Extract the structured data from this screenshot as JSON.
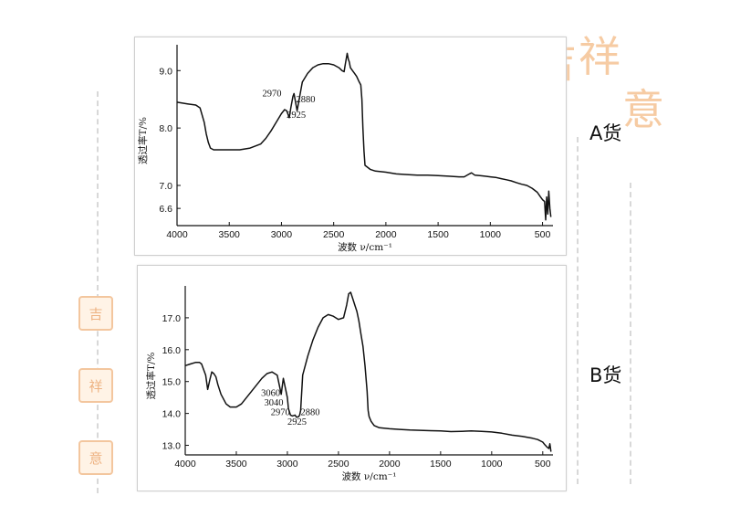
{
  "labels": {
    "panel_a": "A货",
    "panel_b": "B货"
  },
  "logo_text": [
    "吉",
    "祥",
    "意"
  ],
  "colors": {
    "logo": "#f2b98a",
    "line": "#111111",
    "panel_border": "#cfcfcf"
  },
  "chart_data": [
    {
      "type": "line",
      "title": "A货",
      "xlabel": "波数 ν/cm⁻¹",
      "ylabel": "透过率T/%",
      "xlim": [
        4000,
        400
      ],
      "ylim": [
        6.3,
        9.45
      ],
      "xticks": [
        4000,
        3500,
        3000,
        2500,
        2000,
        1500,
        1000,
        500
      ],
      "yticks": [
        6.6,
        7.0,
        8.0,
        9.0
      ],
      "annotations": [
        {
          "text": "2970",
          "x": 3000,
          "y": 8.55,
          "anchor": "end"
        },
        {
          "text": "2880",
          "x": 2860,
          "y": 8.45,
          "anchor": "start"
        },
        {
          "text": "2925",
          "x": 2950,
          "y": 8.18,
          "anchor": "start"
        }
      ],
      "series": [
        {
          "name": "A货",
          "x": [
            4000,
            3900,
            3820,
            3780,
            3740,
            3720,
            3700,
            3680,
            3650,
            3600,
            3500,
            3400,
            3300,
            3200,
            3150,
            3100,
            3050,
            3000,
            2970,
            2950,
            2925,
            2910,
            2890,
            2880,
            2865,
            2850,
            2800,
            2750,
            2700,
            2650,
            2600,
            2550,
            2500,
            2450,
            2420,
            2400,
            2390,
            2370,
            2360,
            2350,
            2340,
            2320,
            2300,
            2280,
            2260,
            2240,
            2230,
            2220,
            2210,
            2200,
            2150,
            2100,
            2000,
            1900,
            1800,
            1700,
            1600,
            1500,
            1400,
            1300,
            1250,
            1200,
            1180,
            1150,
            1100,
            1050,
            1000,
            950,
            900,
            850,
            800,
            750,
            700,
            650,
            600,
            550,
            520,
            500,
            480,
            470,
            460,
            450,
            440,
            430,
            420
          ],
          "y": [
            8.45,
            8.42,
            8.4,
            8.35,
            8.1,
            7.9,
            7.75,
            7.65,
            7.62,
            7.62,
            7.62,
            7.62,
            7.65,
            7.72,
            7.82,
            7.95,
            8.1,
            8.25,
            8.32,
            8.3,
            8.18,
            8.35,
            8.55,
            8.6,
            8.45,
            8.3,
            8.8,
            8.95,
            9.05,
            9.1,
            9.12,
            9.12,
            9.1,
            9.05,
            9.0,
            8.98,
            9.1,
            9.3,
            9.2,
            9.15,
            9.05,
            9.0,
            8.95,
            8.9,
            8.82,
            8.75,
            8.5,
            8.0,
            7.6,
            7.35,
            7.28,
            7.25,
            7.23,
            7.2,
            7.19,
            7.18,
            7.18,
            7.17,
            7.16,
            7.15,
            7.15,
            7.2,
            7.22,
            7.18,
            7.17,
            7.16,
            7.15,
            7.14,
            7.12,
            7.1,
            7.08,
            7.05,
            7.02,
            7.0,
            6.95,
            6.88,
            6.8,
            6.75,
            6.72,
            6.4,
            6.8,
            6.5,
            6.9,
            6.6,
            6.45
          ]
        }
      ]
    },
    {
      "type": "line",
      "title": "B货",
      "xlabel": "波数 ν/cm⁻¹",
      "ylabel": "透过率T/%",
      "xlim": [
        4000,
        400
      ],
      "ylim": [
        12.7,
        18.0
      ],
      "xticks": [
        4000,
        3500,
        3000,
        2500,
        2000,
        1500,
        1000,
        500
      ],
      "yticks": [
        13.0,
        14.0,
        15.0,
        16.0,
        17.0
      ],
      "annotations": [
        {
          "text": "3060",
          "x": 3070,
          "y": 14.55,
          "anchor": "end"
        },
        {
          "text": "3040",
          "x": 3040,
          "y": 14.25,
          "anchor": "end"
        },
        {
          "text": "2970",
          "x": 2975,
          "y": 13.95,
          "anchor": "end"
        },
        {
          "text": "2880",
          "x": 2870,
          "y": 13.95,
          "anchor": "start"
        },
        {
          "text": "2925",
          "x": 3000,
          "y": 13.65,
          "anchor": "start"
        }
      ],
      "series": [
        {
          "name": "B货",
          "x": [
            4000,
            3950,
            3900,
            3860,
            3840,
            3800,
            3780,
            3760,
            3740,
            3720,
            3700,
            3680,
            3650,
            3600,
            3560,
            3520,
            3500,
            3450,
            3400,
            3350,
            3300,
            3250,
            3200,
            3150,
            3100,
            3080,
            3060,
            3050,
            3040,
            3020,
            3000,
            2990,
            2970,
            2950,
            2925,
            2910,
            2890,
            2880,
            2870,
            2850,
            2800,
            2750,
            2700,
            2650,
            2600,
            2550,
            2500,
            2450,
            2420,
            2400,
            2380,
            2360,
            2340,
            2320,
            2300,
            2280,
            2260,
            2240,
            2220,
            2210,
            2200,
            2180,
            2150,
            2100,
            2000,
            1900,
            1800,
            1700,
            1600,
            1500,
            1400,
            1300,
            1200,
            1100,
            1000,
            900,
            800,
            700,
            600,
            550,
            500,
            480,
            460,
            440,
            430,
            420
          ],
          "y": [
            15.5,
            15.55,
            15.6,
            15.6,
            15.55,
            15.2,
            14.75,
            15.05,
            15.3,
            15.25,
            15.15,
            14.9,
            14.6,
            14.3,
            14.2,
            14.2,
            14.2,
            14.3,
            14.5,
            14.7,
            14.9,
            15.1,
            15.25,
            15.3,
            15.2,
            14.9,
            14.6,
            14.85,
            15.1,
            14.8,
            14.5,
            14.15,
            13.95,
            13.92,
            13.95,
            13.88,
            13.9,
            13.95,
            14.1,
            15.2,
            15.8,
            16.3,
            16.7,
            17.0,
            17.1,
            17.05,
            16.95,
            17.0,
            17.4,
            17.75,
            17.8,
            17.6,
            17.4,
            17.2,
            16.9,
            16.5,
            16.1,
            15.5,
            14.7,
            14.1,
            13.9,
            13.75,
            13.62,
            13.55,
            13.52,
            13.5,
            13.48,
            13.47,
            13.46,
            13.45,
            13.43,
            13.44,
            13.45,
            13.44,
            13.42,
            13.38,
            13.32,
            13.28,
            13.22,
            13.18,
            13.1,
            13.02,
            12.95,
            12.9,
            13.05,
            12.8
          ]
        }
      ]
    }
  ]
}
